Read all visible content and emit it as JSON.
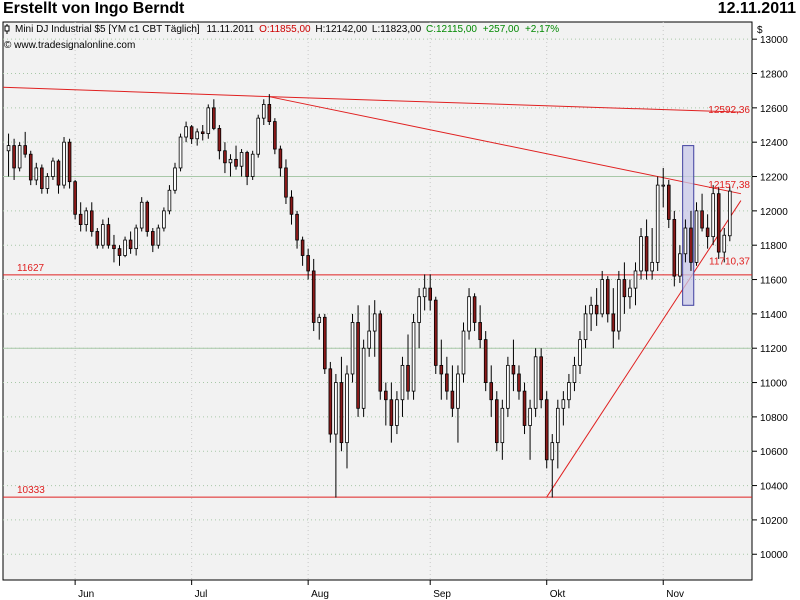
{
  "header": {
    "title": "Erstellt von Ingo Berndt",
    "date": "12.11.2011"
  },
  "info": {
    "symbol": "Mini DJ Industrial $5 [YM c1 CBT  Täglich]",
    "date": "11.11.2011",
    "open_label": "O:",
    "open": "11855,00",
    "high_label": "H:",
    "high": "12142,00",
    "low_label": "L:",
    "low": "11823,00",
    "close_label": "C:",
    "close": "12115,00",
    "change": "+257,00",
    "change_pct": "+2,17%",
    "source": "© www.tradesignalonline.com"
  },
  "colors": {
    "up": "#ffffff",
    "down": "#8b1a1a",
    "wick": "#000000",
    "line": "#e02020",
    "grid_h": "#a8c8a8",
    "grid_v": "#c8c8c8",
    "plot_bg": "#f2f2f2",
    "highlight_fill": "#c8c8e8",
    "highlight_stroke": "#4040a0",
    "open_color": "#cc0000",
    "close_color": "#008800"
  },
  "chart_data": {
    "type": "candlestick",
    "currency_label": "$",
    "ylim": [
      9850,
      13100
    ],
    "yticks": [
      10000,
      10200,
      10400,
      10600,
      10800,
      11000,
      11200,
      11400,
      11600,
      11800,
      12000,
      12200,
      12400,
      12600,
      12800,
      13000
    ],
    "xlim": [
      0,
      135
    ],
    "months": [
      {
        "label": "Jun",
        "x": 13
      },
      {
        "label": "Jul",
        "x": 34
      },
      {
        "label": "Aug",
        "x": 55
      },
      {
        "label": "Sep",
        "x": 77
      },
      {
        "label": "Okt",
        "x": 98
      },
      {
        "label": "Nov",
        "x": 119
      }
    ],
    "horizontal_lines": [
      {
        "label": "11627",
        "value": 11627
      },
      {
        "label": "10333",
        "value": 10333
      }
    ],
    "trendlines": [
      {
        "label": "12592,36",
        "from": [
          0,
          12720
        ],
        "to": [
          48,
          12665
        ]
      },
      {
        "from": [
          48,
          12665
        ],
        "to": [
          133,
          12575
        ]
      },
      {
        "from": [
          48,
          12665
        ],
        "to": [
          133,
          12100
        ]
      },
      {
        "from": [
          98,
          10333
        ],
        "to": [
          133,
          12060
        ]
      }
    ],
    "line_labels": [
      {
        "text": "12592,36",
        "value": 12592.36
      },
      {
        "text": "12157,38",
        "value": 12157.38
      },
      {
        "text": "11710,37",
        "value": 11710.37
      }
    ],
    "highlight": {
      "x0": 122.5,
      "x1": 124.5,
      "y0": 11450,
      "y1": 12380
    },
    "candles": [
      [
        1,
        12350,
        12450,
        12200,
        12380
      ],
      [
        2,
        12380,
        12420,
        12180,
        12250
      ],
      [
        3,
        12250,
        12400,
        12230,
        12380
      ],
      [
        4,
        12380,
        12460,
        12310,
        12330
      ],
      [
        5,
        12330,
        12350,
        12150,
        12180
      ],
      [
        6,
        12180,
        12280,
        12150,
        12250
      ],
      [
        7,
        12250,
        12270,
        12100,
        12130
      ],
      [
        8,
        12130,
        12220,
        12100,
        12200
      ],
      [
        9,
        12200,
        12310,
        12180,
        12290
      ],
      [
        10,
        12290,
        12300,
        12100,
        12150
      ],
      [
        11,
        12150,
        12430,
        12130,
        12400
      ],
      [
        12,
        12400,
        12420,
        12130,
        12170
      ],
      [
        13,
        12170,
        12180,
        11950,
        11980
      ],
      [
        14,
        11980,
        12050,
        11880,
        11920
      ],
      [
        15,
        11920,
        12020,
        11880,
        12000
      ],
      [
        16,
        12000,
        12050,
        11850,
        11880
      ],
      [
        17,
        11880,
        11900,
        11780,
        11800
      ],
      [
        18,
        11800,
        11950,
        11780,
        11920
      ],
      [
        19,
        11920,
        11960,
        11780,
        11800
      ],
      [
        20,
        11800,
        11860,
        11700,
        11780
      ],
      [
        21,
        11780,
        11800,
        11680,
        11740
      ],
      [
        22,
        11740,
        11850,
        11730,
        11830
      ],
      [
        23,
        11830,
        11880,
        11750,
        11780
      ],
      [
        24,
        11780,
        11920,
        11740,
        11900
      ],
      [
        25,
        11900,
        12080,
        11880,
        12050
      ],
      [
        26,
        12050,
        12060,
        11850,
        11880
      ],
      [
        27,
        11880,
        11900,
        11760,
        11800
      ],
      [
        28,
        11800,
        11920,
        11780,
        11900
      ],
      [
        29,
        11900,
        12020,
        11880,
        12000
      ],
      [
        30,
        12000,
        12150,
        11980,
        12120
      ],
      [
        31,
        12120,
        12280,
        12100,
        12250
      ],
      [
        32,
        12250,
        12450,
        12230,
        12430
      ],
      [
        33,
        12430,
        12520,
        12400,
        12490
      ],
      [
        34,
        12490,
        12500,
        12390,
        12420
      ],
      [
        35,
        12420,
        12480,
        12380,
        12460
      ],
      [
        36,
        12460,
        12500,
        12410,
        12450
      ],
      [
        37,
        12450,
        12620,
        12420,
        12600
      ],
      [
        38,
        12600,
        12650,
        12470,
        12480
      ],
      [
        39,
        12480,
        12500,
        12300,
        12350
      ],
      [
        40,
        12350,
        12400,
        12220,
        12280
      ],
      [
        41,
        12280,
        12330,
        12200,
        12300
      ],
      [
        42,
        12300,
        12380,
        12240,
        12260
      ],
      [
        43,
        12260,
        12360,
        12200,
        12340
      ],
      [
        44,
        12340,
        12350,
        12150,
        12200
      ],
      [
        45,
        12200,
        12350,
        12180,
        12330
      ],
      [
        46,
        12330,
        12560,
        12310,
        12540
      ],
      [
        47,
        12540,
        12650,
        12500,
        12620
      ],
      [
        48,
        12620,
        12680,
        12500,
        12520
      ],
      [
        49,
        12520,
        12540,
        12330,
        12360
      ],
      [
        50,
        12360,
        12380,
        12200,
        12250
      ],
      [
        51,
        12250,
        12300,
        12040,
        12080
      ],
      [
        52,
        12080,
        12120,
        11920,
        11980
      ],
      [
        53,
        11980,
        12000,
        11780,
        11830
      ],
      [
        54,
        11830,
        11850,
        11680,
        11740
      ],
      [
        55,
        11740,
        11780,
        11600,
        11650
      ],
      [
        56,
        11650,
        11720,
        11300,
        11350
      ],
      [
        57,
        11350,
        11400,
        11250,
        11380
      ],
      [
        58,
        11380,
        11400,
        11050,
        11080
      ],
      [
        59,
        11080,
        11120,
        10650,
        10700
      ],
      [
        60,
        10700,
        11050,
        10330,
        11000
      ],
      [
        61,
        11000,
        11150,
        10600,
        10650
      ],
      [
        62,
        10650,
        11100,
        10500,
        11050
      ],
      [
        63,
        11050,
        11400,
        11000,
        11350
      ],
      [
        64,
        11350,
        11450,
        10800,
        10850
      ],
      [
        65,
        10850,
        11250,
        10800,
        11200
      ],
      [
        66,
        11200,
        11450,
        11150,
        11300
      ],
      [
        67,
        11300,
        11480,
        11150,
        11400
      ],
      [
        68,
        11400,
        11420,
        10900,
        10950
      ],
      [
        69,
        10950,
        11000,
        10750,
        10900
      ],
      [
        70,
        10900,
        11000,
        10650,
        10750
      ],
      [
        71,
        10750,
        10950,
        10700,
        10900
      ],
      [
        72,
        10900,
        11150,
        10800,
        11100
      ],
      [
        73,
        11100,
        11280,
        10900,
        10950
      ],
      [
        74,
        10950,
        11400,
        10900,
        11350
      ],
      [
        75,
        11350,
        11550,
        11200,
        11500
      ],
      [
        76,
        11500,
        11630,
        11420,
        11550
      ],
      [
        77,
        11550,
        11630,
        11420,
        11480
      ],
      [
        78,
        11480,
        11500,
        11050,
        11100
      ],
      [
        79,
        11100,
        11250,
        10900,
        11050
      ],
      [
        80,
        11050,
        11150,
        10900,
        10950
      ],
      [
        81,
        10950,
        11100,
        10800,
        10850
      ],
      [
        82,
        10850,
        11100,
        10650,
        11050
      ],
      [
        83,
        11050,
        11350,
        11000,
        11300
      ],
      [
        84,
        11300,
        11550,
        11250,
        11500
      ],
      [
        85,
        11500,
        11520,
        11300,
        11350
      ],
      [
        86,
        11350,
        11450,
        11200,
        11250
      ],
      [
        87,
        11250,
        11300,
        10950,
        11000
      ],
      [
        88,
        11000,
        11100,
        10800,
        10900
      ],
      [
        89,
        10900,
        10950,
        10600,
        10650
      ],
      [
        90,
        10650,
        10900,
        10550,
        10850
      ],
      [
        91,
        10850,
        11150,
        10800,
        11100
      ],
      [
        92,
        11100,
        11250,
        10950,
        11050
      ],
      [
        93,
        11050,
        11100,
        10900,
        10950
      ],
      [
        94,
        10950,
        11000,
        10700,
        10750
      ],
      [
        95,
        10750,
        10900,
        10550,
        10850
      ],
      [
        96,
        10850,
        11200,
        10800,
        11150
      ],
      [
        97,
        11150,
        11200,
        10850,
        10900
      ],
      [
        98,
        10900,
        10950,
        10500,
        10550
      ],
      [
        99,
        10550,
        10700,
        10330,
        10650
      ],
      [
        100,
        10650,
        10900,
        10500,
        10850
      ],
      [
        101,
        10850,
        10950,
        10750,
        10900
      ],
      [
        102,
        10900,
        11050,
        10850,
        11000
      ],
      [
        103,
        11000,
        11150,
        10950,
        11100
      ],
      [
        104,
        11100,
        11300,
        11050,
        11250
      ],
      [
        105,
        11250,
        11450,
        11200,
        11400
      ],
      [
        106,
        11400,
        11500,
        11300,
        11450
      ],
      [
        107,
        11450,
        11550,
        11330,
        11400
      ],
      [
        108,
        11400,
        11650,
        11380,
        11600
      ],
      [
        109,
        11600,
        11620,
        11350,
        11400
      ],
      [
        110,
        11400,
        11550,
        11200,
        11300
      ],
      [
        111,
        11300,
        11650,
        11250,
        11600
      ],
      [
        112,
        11600,
        11700,
        11400,
        11500
      ],
      [
        113,
        11500,
        11600,
        11430,
        11550
      ],
      [
        114,
        11550,
        11700,
        11450,
        11650
      ],
      [
        115,
        11650,
        11900,
        11600,
        11850
      ],
      [
        116,
        11850,
        11950,
        11600,
        11650
      ],
      [
        117,
        11650,
        11900,
        11600,
        11700
      ],
      [
        118,
        11700,
        12200,
        11650,
        12150
      ],
      [
        119,
        12150,
        12250,
        12020,
        12150
      ],
      [
        120,
        12150,
        12180,
        11900,
        11950
      ],
      [
        121,
        11950,
        12000,
        11560,
        11620
      ],
      [
        122,
        11620,
        11800,
        11580,
        11750
      ],
      [
        123,
        11750,
        11950,
        11700,
        11900
      ],
      [
        124,
        11900,
        12000,
        11650,
        11700
      ],
      [
        125,
        11700,
        12050,
        11680,
        12000
      ],
      [
        126,
        12000,
        12100,
        11880,
        11900
      ],
      [
        127,
        11900,
        11980,
        11780,
        11850
      ],
      [
        128,
        11850,
        12150,
        11800,
        12100
      ],
      [
        129,
        12100,
        12140,
        11720,
        11760
      ],
      [
        130,
        11760,
        11900,
        11700,
        11858
      ],
      [
        131,
        11855,
        12142,
        11823,
        12115
      ]
    ]
  }
}
